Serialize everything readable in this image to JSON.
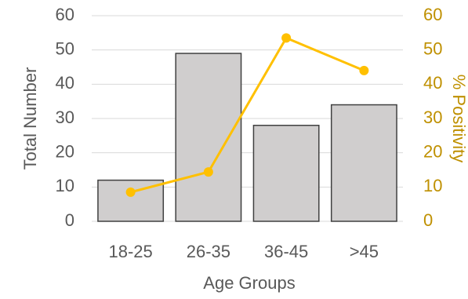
{
  "chart_data": {
    "type": "bar",
    "xlabel": "Age Groups",
    "ylabel": "Total Number",
    "y2label": "% Positivity",
    "categories": [
      "18-25",
      "26-35",
      "36-45",
      ">45"
    ],
    "series": [
      {
        "type": "bar",
        "color": "#d0cece",
        "values": [
          12,
          49,
          28,
          34
        ]
      },
      {
        "type": "line",
        "axis": "y2",
        "color": "#ffc000",
        "values": [
          8.5,
          14.4,
          53.5,
          44
        ]
      }
    ],
    "ylim": [
      0,
      60
    ],
    "yticks": [
      0,
      10,
      20,
      30,
      40,
      50,
      60
    ],
    "y2lim": [
      0,
      60
    ],
    "y2ticks": [
      0,
      10,
      20,
      30,
      40,
      50,
      60
    ],
    "y2color": "#bf9000",
    "grid": true
  }
}
